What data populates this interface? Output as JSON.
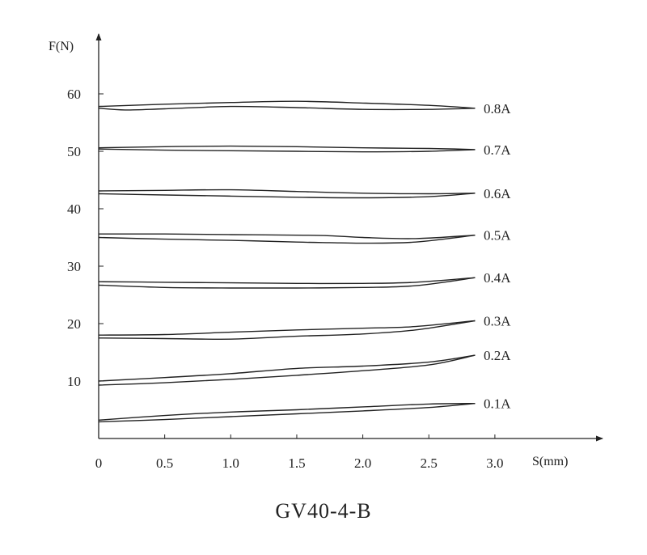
{
  "caption": "GV40-4-B",
  "chart_data": {
    "type": "line",
    "title": "",
    "xlabel": "S(mm)",
    "ylabel": "F(N)",
    "xlim": [
      0,
      3.0
    ],
    "ylim": [
      0,
      65
    ],
    "x_ticks": [
      0,
      0.5,
      1.0,
      1.5,
      2.0,
      2.5,
      3.0
    ],
    "x_tick_labels": [
      "0",
      "0.5",
      "1.0",
      "1.5",
      "2.0",
      "2.5",
      "3.0"
    ],
    "y_ticks": [
      10,
      20,
      30,
      40,
      50,
      60
    ],
    "y_tick_labels": [
      "10",
      "20",
      "30",
      "40",
      "50",
      "60"
    ],
    "grid": false,
    "legend": "inline-right",
    "line_color": "#222222",
    "series": [
      {
        "name": "0.1A",
        "upper": {
          "x": [
            0,
            0.5,
            1.0,
            1.5,
            2.0,
            2.5,
            2.85
          ],
          "y": [
            3.2,
            4.0,
            4.6,
            5.0,
            5.5,
            6.0,
            6.1
          ]
        },
        "lower": {
          "x": [
            0,
            0.5,
            1.0,
            1.5,
            2.0,
            2.5,
            2.85
          ],
          "y": [
            2.9,
            3.3,
            3.8,
            4.3,
            4.8,
            5.4,
            6.1
          ]
        }
      },
      {
        "name": "0.2A",
        "upper": {
          "x": [
            0,
            0.5,
            1.0,
            1.5,
            2.0,
            2.5,
            2.85
          ],
          "y": [
            10.0,
            10.6,
            11.3,
            12.2,
            12.6,
            13.3,
            14.5
          ]
        },
        "lower": {
          "x": [
            0,
            0.5,
            1.0,
            1.5,
            2.0,
            2.5,
            2.85
          ],
          "y": [
            9.3,
            9.7,
            10.3,
            11.0,
            11.8,
            12.8,
            14.5
          ]
        }
      },
      {
        "name": "0.3A",
        "upper": {
          "x": [
            0,
            0.5,
            1.0,
            1.5,
            2.0,
            2.4,
            2.85
          ],
          "y": [
            18.0,
            18.1,
            18.5,
            18.9,
            19.2,
            19.5,
            20.5
          ]
        },
        "lower": {
          "x": [
            0,
            0.5,
            1.0,
            1.5,
            2.0,
            2.4,
            2.85
          ],
          "y": [
            17.5,
            17.4,
            17.3,
            17.8,
            18.2,
            18.9,
            20.5
          ]
        }
      },
      {
        "name": "0.4A",
        "upper": {
          "x": [
            0,
            0.5,
            1.0,
            1.5,
            2.0,
            2.4,
            2.85
          ],
          "y": [
            27.3,
            27.2,
            27.1,
            27.0,
            27.0,
            27.2,
            28.0
          ]
        },
        "lower": {
          "x": [
            0,
            0.5,
            1.0,
            1.5,
            2.0,
            2.4,
            2.85
          ],
          "y": [
            26.7,
            26.3,
            26.2,
            26.2,
            26.3,
            26.6,
            28.0
          ]
        }
      },
      {
        "name": "0.5A",
        "upper": {
          "x": [
            0,
            0.5,
            1.0,
            1.5,
            1.75,
            2.0,
            2.4,
            2.85
          ],
          "y": [
            35.6,
            35.6,
            35.5,
            35.4,
            35.3,
            35.0,
            34.8,
            35.4
          ]
        },
        "lower": {
          "x": [
            0,
            0.5,
            1.0,
            1.5,
            1.75,
            2.0,
            2.4,
            2.85
          ],
          "y": [
            35.0,
            34.7,
            34.5,
            34.2,
            34.1,
            34.0,
            34.2,
            35.4
          ]
        }
      },
      {
        "name": "0.6A",
        "upper": {
          "x": [
            0,
            0.5,
            1.0,
            1.5,
            2.0,
            2.5,
            2.85
          ],
          "y": [
            43.1,
            43.2,
            43.3,
            43.0,
            42.7,
            42.6,
            42.7
          ]
        },
        "lower": {
          "x": [
            0,
            0.5,
            1.0,
            1.5,
            2.0,
            2.5,
            2.85
          ],
          "y": [
            42.6,
            42.4,
            42.2,
            42.0,
            41.9,
            42.1,
            42.7
          ]
        }
      },
      {
        "name": "0.7A",
        "upper": {
          "x": [
            0,
            0.5,
            1.0,
            1.5,
            2.0,
            2.5,
            2.85
          ],
          "y": [
            50.6,
            50.8,
            50.9,
            50.8,
            50.6,
            50.5,
            50.3
          ]
        },
        "lower": {
          "x": [
            0,
            0.5,
            1.0,
            1.5,
            2.0,
            2.5,
            2.85
          ],
          "y": [
            50.4,
            50.2,
            50.1,
            50.0,
            49.9,
            50.0,
            50.3
          ]
        }
      },
      {
        "name": "0.8A",
        "upper": {
          "x": [
            0,
            0.5,
            1.0,
            1.5,
            2.0,
            2.5,
            2.85
          ],
          "y": [
            57.8,
            58.2,
            58.5,
            58.7,
            58.4,
            58.0,
            57.5
          ]
        },
        "lower": {
          "x": [
            0,
            0.2,
            0.5,
            1.0,
            1.5,
            2.0,
            2.5,
            2.85
          ],
          "y": [
            57.5,
            57.2,
            57.4,
            57.8,
            57.6,
            57.3,
            57.3,
            57.5
          ]
        }
      }
    ]
  }
}
